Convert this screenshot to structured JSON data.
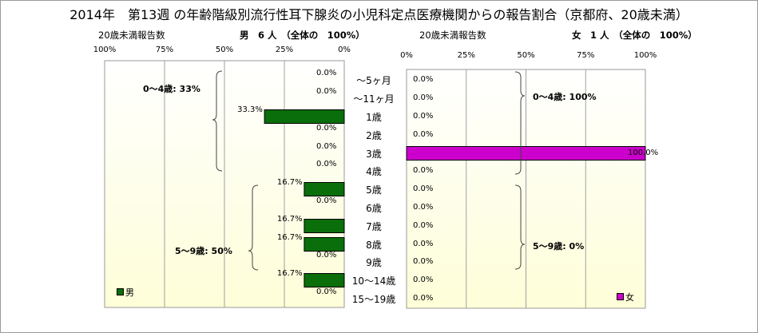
{
  "title": "2014年　第13週 の年齢階級別流行性耳下腺炎の小児科定点医療機関からの報告割合（京都府、20歳未満）",
  "male_header": "20歳未満報告数",
  "male_count": "男　6 人　（全体の　100%）",
  "female_header": "20歳未満報告数",
  "female_count": "女　1 人　（全体の　100%）",
  "male_group1": "0～4歳: 33%",
  "male_group2": "5～9歳: 50%",
  "female_group1": "0～4歳: 100%",
  "female_group2": "5～9歳: 0%",
  "male_legend": "男",
  "female_legend": "女",
  "colors": {
    "male": "#0a6e0a",
    "female": "#cc00cc",
    "plot_bg_top": "#ffffff",
    "plot_bg_bottom": "#fefed8"
  },
  "chart_data": [
    {
      "type": "bar",
      "orientation": "horizontal",
      "direction": "right-to-left",
      "title": "男　6 人　（全体の　100%）",
      "xlim": [
        0,
        100
      ],
      "x_ticks": [
        "100%",
        "75%",
        "50%",
        "25%",
        "0%"
      ],
      "categories": [
        "～5ヶ月",
        "～11ヶ月",
        "1歳",
        "2歳",
        "3歳",
        "4歳",
        "5歳",
        "6歳",
        "7歳",
        "8歳",
        "9歳",
        "10～14歳",
        "15～19歳"
      ],
      "series": [
        {
          "name": "男",
          "values": [
            0.0,
            0.0,
            33.3,
            0.0,
            0.0,
            0.0,
            16.7,
            0.0,
            16.7,
            16.7,
            0.0,
            16.7,
            0.0
          ],
          "labels": [
            "0.0%",
            "0.0%",
            "33.3%",
            "0.0%",
            "0.0%",
            "0.0%",
            "16.7%",
            "0.0%",
            "16.7%",
            "16.7%",
            "0.0%",
            "16.7%",
            "0.0%"
          ]
        }
      ],
      "legend": "bottom-left",
      "grid": true
    },
    {
      "type": "bar",
      "orientation": "horizontal",
      "title": "女　1 人　（全体の　100%）",
      "xlim": [
        0,
        100
      ],
      "x_ticks": [
        "0%",
        "25%",
        "50%",
        "75%",
        "100%"
      ],
      "categories": [
        "～5ヶ月",
        "～11ヶ月",
        "1歳",
        "2歳",
        "3歳",
        "4歳",
        "5歳",
        "6歳",
        "7歳",
        "8歳",
        "9歳",
        "10～14歳",
        "15～19歳"
      ],
      "series": [
        {
          "name": "女",
          "values": [
            0.0,
            0.0,
            0.0,
            0.0,
            100.0,
            0.0,
            0.0,
            0.0,
            0.0,
            0.0,
            0.0,
            0.0,
            0.0
          ],
          "labels": [
            "0.0%",
            "0.0%",
            "0.0%",
            "0.0%",
            "100.0%",
            "0.0%",
            "0.0%",
            "0.0%",
            "0.0%",
            "0.0%",
            "0.0%",
            "0.0%",
            "0.0%"
          ]
        }
      ],
      "legend": "bottom-right",
      "grid": true
    }
  ]
}
